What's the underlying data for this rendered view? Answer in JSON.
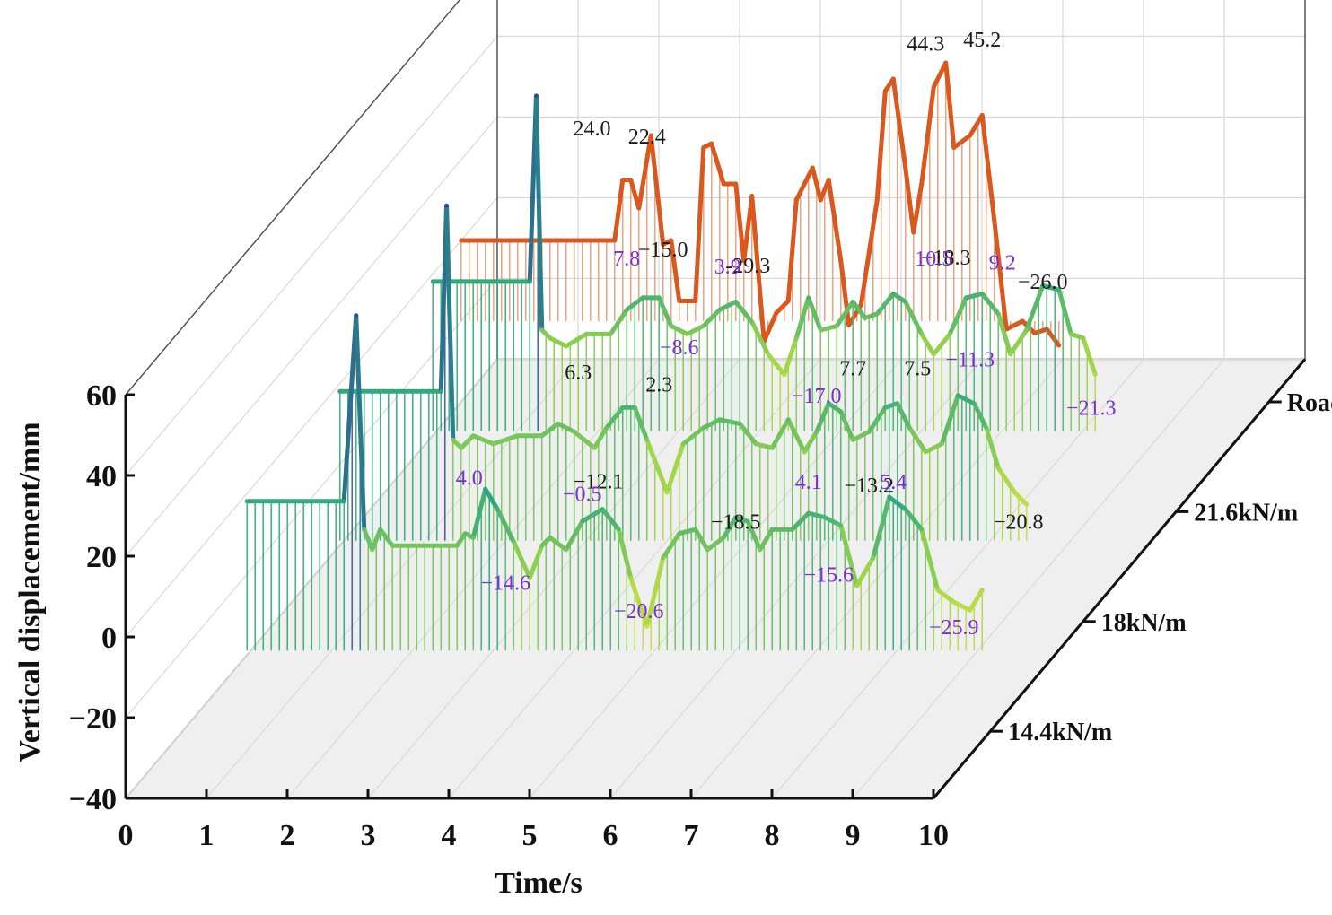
{
  "chart_data": {
    "type": "line",
    "subtype": "3d-waterfall",
    "title": "",
    "xlabel": "Time/s",
    "ylabel": "Vertical displacement/mm",
    "xlim": [
      0,
      10
    ],
    "ylim": [
      -40,
      60
    ],
    "xticks": [
      "0",
      "1",
      "2",
      "3",
      "4",
      "5",
      "6",
      "7",
      "8",
      "9",
      "10"
    ],
    "yticks": [
      "60",
      "40",
      "20",
      "0",
      "−20",
      "−40"
    ],
    "grid": true,
    "categories": [
      "14.4kN/m",
      "18kN/m",
      "21.6kN/m",
      "Road excitation"
    ],
    "series": [
      {
        "name": "14.4kN/m",
        "x": [
          0.8,
          2.0,
          2.15,
          2.25,
          2.35,
          2.45,
          2.6,
          3.0,
          3.4,
          3.5,
          3.6,
          3.75,
          3.9,
          4.1,
          4.3,
          4.45,
          4.55,
          4.75,
          4.95,
          5.2,
          5.4,
          5.55,
          5.75,
          5.95,
          6.15,
          6.35,
          6.5,
          6.7,
          6.85,
          7.0,
          7.15,
          7.3,
          7.55,
          7.75,
          7.95,
          8.15,
          8.35,
          8.55,
          8.75,
          8.95,
          9.15,
          9.35,
          9.55,
          9.75,
          9.9
        ],
        "y": [
          17,
          17,
          63,
          10,
          5,
          10,
          6,
          6,
          6,
          9,
          8,
          20,
          15,
          7,
          -2,
          6,
          8,
          5,
          12,
          15,
          10,
          -2,
          -14,
          3,
          9,
          10,
          5,
          8,
          13,
          12,
          5,
          10,
          10,
          14,
          13,
          11,
          -4,
          3,
          18,
          15,
          10,
          -5,
          -8,
          -10,
          -5
        ]
      },
      {
        "name": "18kN/m",
        "x": [
          0.8,
          2.05,
          2.12,
          2.2,
          2.3,
          2.45,
          2.7,
          3.0,
          3.3,
          3.5,
          3.7,
          3.95,
          4.1,
          4.3,
          4.45,
          4.6,
          4.85,
          5.05,
          5.3,
          5.5,
          5.75,
          5.95,
          6.15,
          6.35,
          6.55,
          6.7,
          6.85,
          7.0,
          7.15,
          7.35,
          7.55,
          7.7,
          7.85,
          8.05,
          8.25,
          8.45,
          8.65,
          8.8,
          8.95,
          9.15,
          9.3
        ],
        "y": [
          17,
          17,
          63,
          5,
          3,
          6,
          4,
          6,
          6,
          9,
          7,
          3,
          8,
          13,
          13,
          5,
          -8,
          4,
          8,
          10,
          9,
          4,
          3,
          10,
          2,
          7,
          14,
          12,
          5,
          7,
          13,
          14,
          8,
          2,
          4,
          16,
          14,
          8,
          -2,
          -8,
          -11
        ]
      },
      {
        "name": "21.6kN/m",
        "x": [
          0.8,
          2.0,
          2.08,
          2.15,
          2.25,
          2.45,
          2.7,
          3.0,
          3.2,
          3.4,
          3.6,
          3.75,
          3.95,
          4.15,
          4.35,
          4.55,
          4.75,
          4.95,
          5.15,
          5.3,
          5.45,
          5.6,
          5.8,
          6.0,
          6.15,
          6.3,
          6.5,
          6.65,
          6.85,
          7.0,
          7.2,
          7.4,
          7.6,
          7.8,
          7.95,
          8.15,
          8.35,
          8.55,
          8.7,
          8.85,
          9.0
        ],
        "y": [
          17,
          17,
          63,
          5,
          3,
          1,
          4,
          4,
          10,
          13,
          13,
          6,
          4,
          6,
          10,
          12,
          7,
          -1,
          -6,
          3,
          13,
          5,
          6,
          12,
          8,
          9,
          14,
          12,
          4,
          -1,
          4,
          13,
          14,
          9,
          -1,
          5,
          16,
          15,
          4,
          3,
          -6
        ]
      },
      {
        "name": "Road excitation",
        "x": [
          0.0,
          1.8,
          1.9,
          2.0,
          2.1,
          2.2,
          2.35,
          2.5,
          2.6,
          2.7,
          2.9,
          3.0,
          3.1,
          3.25,
          3.4,
          3.5,
          3.6,
          3.75,
          3.9,
          4.05,
          4.15,
          4.35,
          4.45,
          4.55,
          4.7,
          4.8,
          4.95,
          5.15,
          5.25,
          5.35,
          5.5,
          5.6,
          5.7,
          5.85,
          6.0,
          6.1,
          6.3,
          6.45,
          6.6,
          6.75,
          6.95,
          7.1,
          7.25,
          7.4
        ],
        "y": [
          0,
          0,
          0,
          15,
          15,
          8,
          26,
          -1,
          0,
          -15,
          -15,
          23,
          24,
          14,
          14,
          -5,
          11,
          -25,
          -18,
          -15,
          10,
          18,
          10,
          15,
          -5,
          -21,
          -16,
          10,
          37,
          40,
          18,
          2,
          14,
          38,
          44,
          23,
          26,
          31,
          5,
          -22,
          -20,
          -23,
          -22,
          -26
        ]
      }
    ],
    "annotations": [
      {
        "series": "Road excitation",
        "label": "24.0",
        "x": 1.62,
        "y": 26
      },
      {
        "series": "Road excitation",
        "label": "22.4",
        "x": 2.3,
        "y": 24
      },
      {
        "series": "Road excitation",
        "label": "−15.0",
        "x": 2.5,
        "y": -4
      },
      {
        "series": "Road excitation",
        "label": "-29.3",
        "x": 3.55,
        "y": -8
      },
      {
        "series": "Road excitation",
        "label": "44.3",
        "x": 5.75,
        "y": 47
      },
      {
        "series": "Road excitation",
        "label": "45.2",
        "x": 6.45,
        "y": 48
      },
      {
        "series": "Road excitation",
        "label": "−18.3",
        "x": 6.0,
        "y": -6
      },
      {
        "series": "Road excitation",
        "label": "−26.0",
        "x": 7.2,
        "y": -12
      },
      {
        "series": "21.6kN/m",
        "label": "7.8",
        "x": 3.2,
        "y": 21
      },
      {
        "series": "21.6kN/m",
        "label": "−8.6",
        "x": 3.85,
        "y": -1
      },
      {
        "series": "21.6kN/m",
        "label": "3.9",
        "x": 4.45,
        "y": 19
      },
      {
        "series": "21.6kN/m",
        "label": "−17.0",
        "x": 5.55,
        "y": -13
      },
      {
        "series": "21.6kN/m",
        "label": "10.5",
        "x": 7.0,
        "y": 21
      },
      {
        "series": "21.6kN/m",
        "label": "−11.3",
        "x": 7.45,
        "y": -4
      },
      {
        "series": "21.6kN/m",
        "label": "9.2",
        "x": 7.85,
        "y": 20
      },
      {
        "series": "21.6kN/m",
        "label": "−21.3",
        "x": 8.95,
        "y": -16
      },
      {
        "series": "18kN/m",
        "label": "6.3",
        "x": 3.75,
        "y": 20
      },
      {
        "series": "18kN/m",
        "label": "−12.1",
        "x": 4.0,
        "y": -7
      },
      {
        "series": "18kN/m",
        "label": "2.3",
        "x": 4.75,
        "y": 17
      },
      {
        "series": "18kN/m",
        "label": "−18.5",
        "x": 5.7,
        "y": -17
      },
      {
        "series": "18kN/m",
        "label": "7.7",
        "x": 7.15,
        "y": 21
      },
      {
        "series": "18kN/m",
        "label": "−13.2",
        "x": 7.35,
        "y": -8
      },
      {
        "series": "18kN/m",
        "label": "7.5",
        "x": 7.95,
        "y": 21
      },
      {
        "series": "18kN/m",
        "label": "−20.8",
        "x": 9.2,
        "y": -17
      },
      {
        "series": "14.4kN/m",
        "label": "4.0",
        "x": 3.55,
        "y": 21
      },
      {
        "series": "14.4kN/m",
        "label": "−14.6",
        "x": 4.0,
        "y": -5
      },
      {
        "series": "14.4kN/m",
        "label": "−0.5",
        "x": 4.95,
        "y": 17
      },
      {
        "series": "14.4kN/m",
        "label": "−20.6",
        "x": 5.65,
        "y": -12
      },
      {
        "series": "14.4kN/m",
        "label": "4.1",
        "x": 7.75,
        "y": 20
      },
      {
        "series": "14.4kN/m",
        "label": "−15.6",
        "x": 8.0,
        "y": -3
      },
      {
        "series": "14.4kN/m",
        "label": "5.4",
        "x": 8.8,
        "y": 20
      },
      {
        "series": "14.4kN/m",
        "label": "−25.9",
        "x": 9.55,
        "y": -16
      }
    ],
    "colors": {
      "road_line": "#d9581e",
      "road_fill": "#e3a07c",
      "purple_label": "#7b2be0",
      "dark_label": "#1a1a1a",
      "floor": "#efefef",
      "grid": "#d9d9d9",
      "low": "#ffe93a",
      "mid": "#9bd44a",
      "high": "#1fa184",
      "top": "#3b3f96"
    }
  }
}
